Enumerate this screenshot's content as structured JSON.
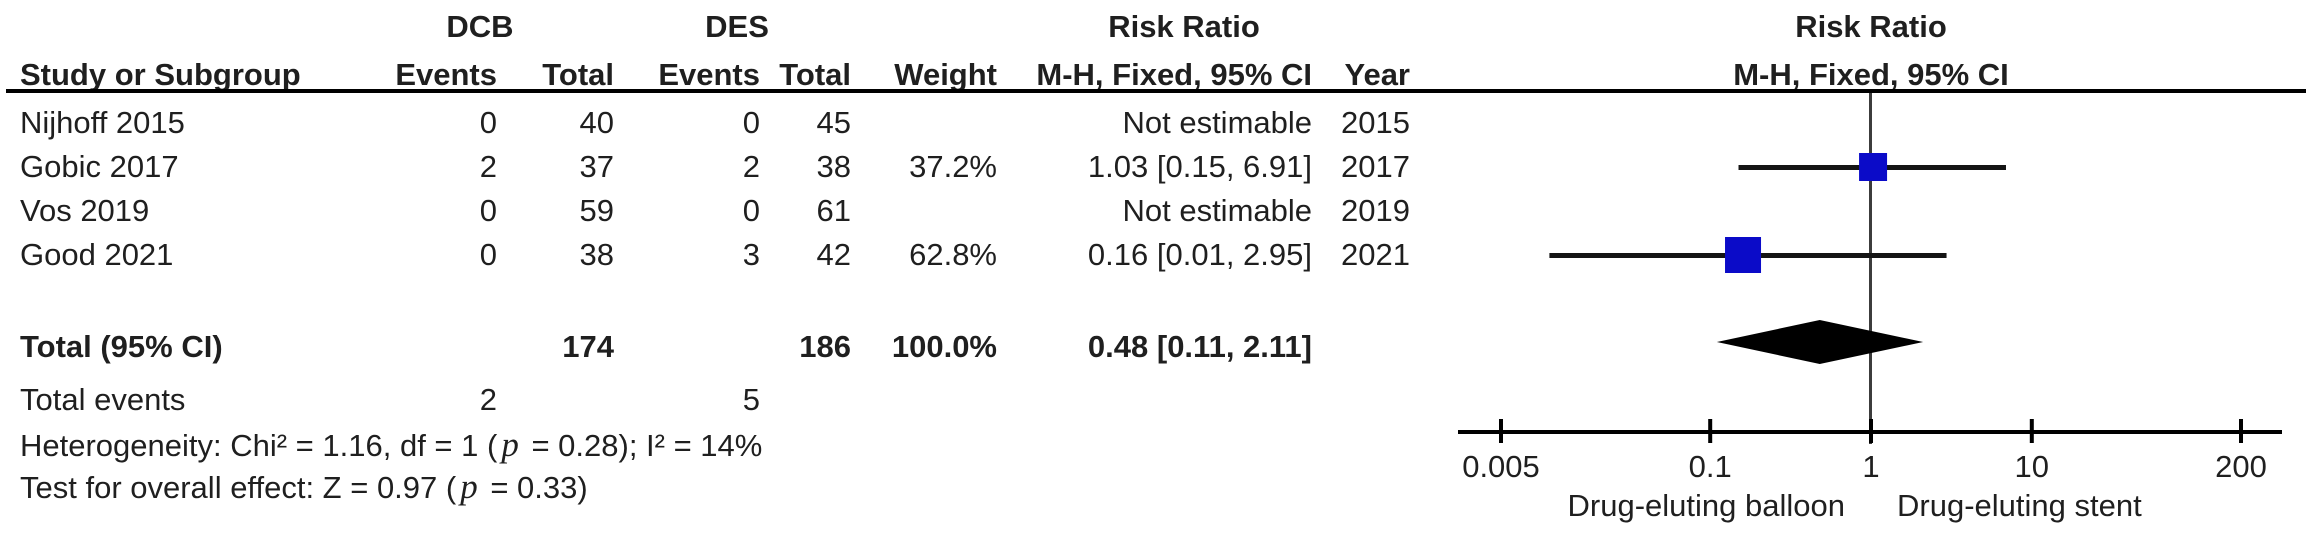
{
  "header": {
    "group_dcb": "DCB",
    "group_des": "DES",
    "col_study": "Study or Subgroup",
    "col_events": "Events",
    "col_total": "Total",
    "col_weight": "Weight",
    "rr_title": "Risk Ratio",
    "rr_subtitle": "M-H, Fixed, 95% CI",
    "col_year": "Year",
    "plot_title": "Risk Ratio",
    "plot_subtitle": "M-H, Fixed, 95% CI"
  },
  "table": {
    "rows": [
      {
        "study": "Nijhoff 2015",
        "dcb_events": "0",
        "dcb_total": "40",
        "des_events": "0",
        "des_total": "45",
        "weight": "",
        "rr": "Not estimable",
        "year": "2015"
      },
      {
        "study": "Gobic 2017",
        "dcb_events": "2",
        "dcb_total": "37",
        "des_events": "2",
        "des_total": "38",
        "weight": "37.2%",
        "rr": "1.03 [0.15, 6.91]",
        "year": "2017"
      },
      {
        "study": "Vos 2019",
        "dcb_events": "0",
        "dcb_total": "59",
        "des_events": "0",
        "des_total": "61",
        "weight": "",
        "rr": "Not estimable",
        "year": "2019"
      },
      {
        "study": "Good 2021",
        "dcb_events": "0",
        "dcb_total": "38",
        "des_events": "3",
        "des_total": "42",
        "weight": "62.8%",
        "rr": "0.16 [0.01, 2.95]",
        "year": "2021"
      }
    ],
    "total": {
      "label": "Total (95% CI)",
      "dcb_total": "174",
      "des_total": "186",
      "weight": "100.0%",
      "rr": "0.48 [0.11, 2.11]",
      "year": ""
    },
    "total_events": {
      "label": "Total events",
      "dcb": "2",
      "des": "5"
    },
    "heterogeneity": {
      "pre": "Heterogeneity: Chi² = 1.16, df = 1 (",
      "p": "p",
      "post": " = 0.28); I² = 14%"
    },
    "overall_effect": {
      "pre": "Test for overall effect: Z = 0.97 (",
      "p": "p",
      "post": " = 0.33)"
    }
  },
  "chart_data": {
    "type": "scatter",
    "subtype": "forest-plot",
    "title": "Risk Ratio",
    "xlabel": "M-H, Fixed, 95% CI",
    "x_scale": "log",
    "x_ticks": [
      0.005,
      0.1,
      1,
      10,
      200
    ],
    "x_tick_labels": [
      "0.005",
      "0.1",
      "1",
      "10",
      "200"
    ],
    "xlim": [
      0.005,
      200
    ],
    "no_effect_line": 1,
    "studies": [
      {
        "name": "Nijhoff 2015",
        "estimable": false,
        "rr": null,
        "ci_low": null,
        "ci_high": null,
        "weight_pct": null
      },
      {
        "name": "Gobic 2017",
        "estimable": true,
        "rr": 1.03,
        "ci_low": 0.15,
        "ci_high": 6.91,
        "weight_pct": 37.2
      },
      {
        "name": "Vos 2019",
        "estimable": false,
        "rr": null,
        "ci_low": null,
        "ci_high": null,
        "weight_pct": null
      },
      {
        "name": "Good 2021",
        "estimable": true,
        "rr": 0.16,
        "ci_low": 0.01,
        "ci_high": 2.95,
        "weight_pct": 62.8
      }
    ],
    "total": {
      "rr": 0.48,
      "ci_low": 0.11,
      "ci_high": 2.11
    },
    "favors_left_label": "Drug-eluting balloon",
    "favors_right_label": "Drug-eluting stent"
  },
  "colors": {
    "marker_blue": "#0b0bc8",
    "ci_line": "#141414",
    "diamond": "#000000",
    "axis": "#000000",
    "center_line": "#3c3c3c",
    "text": "#1f1f1f"
  }
}
